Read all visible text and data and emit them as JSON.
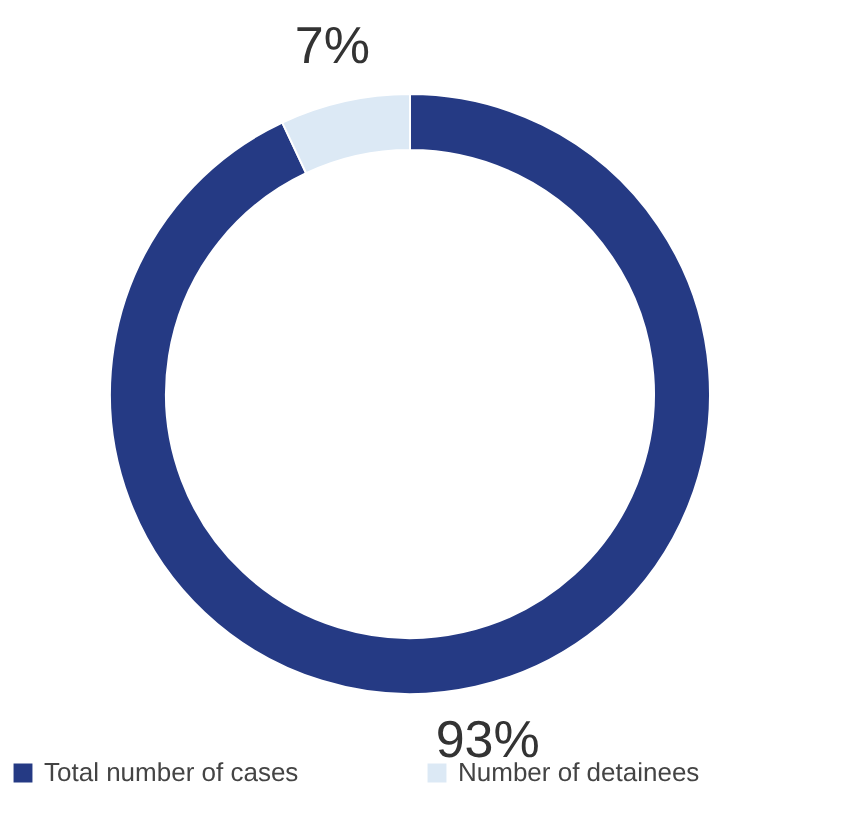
{
  "chart_data": {
    "type": "donut",
    "categories": [
      "Total number of cases",
      "Number of detainees"
    ],
    "values": [
      93,
      7
    ],
    "colors": [
      "#253a84",
      "#dce9f5"
    ],
    "value_labels": [
      "93%",
      "7%"
    ],
    "legend": "bottom"
  }
}
